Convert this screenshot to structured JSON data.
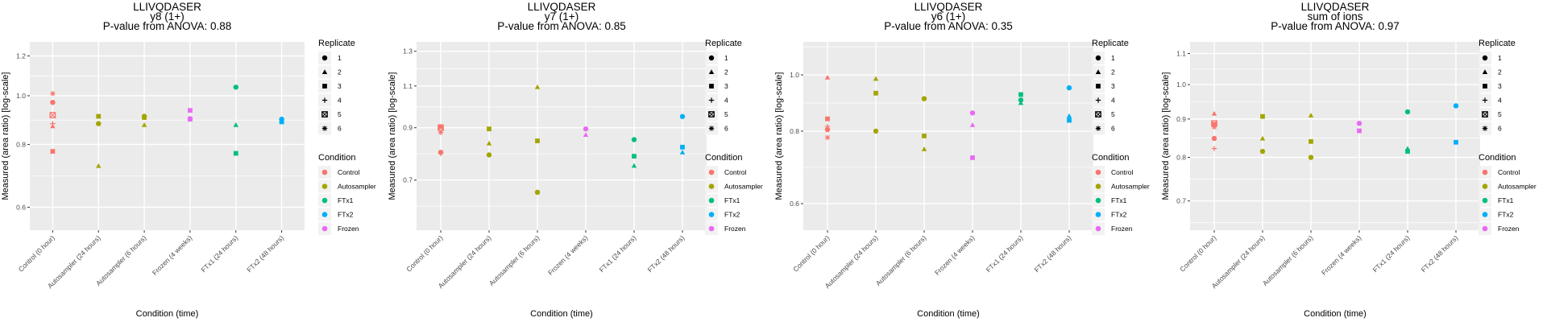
{
  "chart_data": [
    {
      "type": "scatter",
      "title": [
        "LLIVQDASER",
        "y8 (1+)",
        "P-value from ANOVA: 0.88"
      ],
      "xlabel": "Condition (time)",
      "ylabel": "Measured (area ratio) [log-scale]",
      "categories": [
        "Control (0 hour)",
        "Autosampler (24 hours)",
        "Autosampler (6 hours)",
        "Frozen (4 weeks)",
        "FTx1 (24 hours)",
        "FTx2 (48 hours)"
      ],
      "y_scale": "log",
      "ylim": [
        0.54,
        1.28
      ],
      "yticks": [
        0.6,
        0.8,
        1.0,
        1.2
      ],
      "grid": true,
      "points": [
        {
          "x": 0,
          "y": 1.01,
          "condition": "Control",
          "replicate": 6
        },
        {
          "x": 0,
          "y": 0.97,
          "condition": "Control",
          "replicate": 1
        },
        {
          "x": 0,
          "y": 0.915,
          "condition": "Control",
          "replicate": 5
        },
        {
          "x": 0,
          "y": 0.88,
          "condition": "Control",
          "replicate": 4
        },
        {
          "x": 0,
          "y": 0.87,
          "condition": "Control",
          "replicate": 2
        },
        {
          "x": 0,
          "y": 0.775,
          "condition": "Control",
          "replicate": 3
        },
        {
          "x": 1,
          "y": 0.91,
          "condition": "Autosampler",
          "replicate": 3
        },
        {
          "x": 1,
          "y": 0.88,
          "condition": "Autosampler",
          "replicate": 1
        },
        {
          "x": 1,
          "y": 0.725,
          "condition": "Autosampler",
          "replicate": 2
        },
        {
          "x": 2,
          "y": 0.91,
          "condition": "Autosampler",
          "replicate": 1
        },
        {
          "x": 2,
          "y": 0.905,
          "condition": "Autosampler",
          "replicate": 3
        },
        {
          "x": 2,
          "y": 0.875,
          "condition": "Autosampler",
          "replicate": 2
        },
        {
          "x": 3,
          "y": 0.935,
          "condition": "Frozen",
          "replicate": 3
        },
        {
          "x": 3,
          "y": 0.9,
          "condition": "Frozen",
          "replicate": 1
        },
        {
          "x": 3,
          "y": 0.898,
          "condition": "Frozen",
          "replicate": 3
        },
        {
          "x": 4,
          "y": 1.04,
          "condition": "FTx1",
          "replicate": 1
        },
        {
          "x": 4,
          "y": 0.875,
          "condition": "FTx1",
          "replicate": 2
        },
        {
          "x": 4,
          "y": 0.768,
          "condition": "FTx1",
          "replicate": 3
        },
        {
          "x": 5,
          "y": 0.898,
          "condition": "FTx2",
          "replicate": 1
        },
        {
          "x": 5,
          "y": 0.892,
          "condition": "FTx2",
          "replicate": 2
        },
        {
          "x": 5,
          "y": 0.887,
          "condition": "FTx2",
          "replicate": 3
        }
      ]
    },
    {
      "type": "scatter",
      "title": [
        "LLIVQDASER",
        "y7 (1+)",
        "P-value from ANOVA: 0.85"
      ],
      "xlabel": "Condition (time)",
      "ylabel": "Measured (area ratio) [log-scale]",
      "categories": [
        "Control (0 hour)",
        "Autosampler (24 hours)",
        "Autosampler (6 hours)",
        "Frozen (4 weeks)",
        "FTx1 (24 hours)",
        "FTx2 (48 hours)"
      ],
      "y_scale": "log",
      "ylim": [
        0.55,
        1.36
      ],
      "yticks": [
        0.7,
        0.9,
        1.1,
        1.3
      ],
      "grid": true,
      "points": [
        {
          "x": 0,
          "y": 0.905,
          "condition": "Control",
          "replicate": 3
        },
        {
          "x": 0,
          "y": 0.9,
          "condition": "Control",
          "replicate": 5
        },
        {
          "x": 0,
          "y": 0.88,
          "condition": "Control",
          "replicate": 6
        },
        {
          "x": 0,
          "y": 0.8,
          "condition": "Control",
          "replicate": 1
        },
        {
          "x": 0,
          "y": 0.795,
          "condition": "Control",
          "replicate": 4
        },
        {
          "x": 1,
          "y": 0.895,
          "condition": "Autosampler",
          "replicate": 3
        },
        {
          "x": 1,
          "y": 0.835,
          "condition": "Autosampler",
          "replicate": 2
        },
        {
          "x": 1,
          "y": 0.79,
          "condition": "Autosampler",
          "replicate": 1
        },
        {
          "x": 2,
          "y": 1.095,
          "condition": "Autosampler",
          "replicate": 2
        },
        {
          "x": 2,
          "y": 0.845,
          "condition": "Autosampler",
          "replicate": 3
        },
        {
          "x": 2,
          "y": 0.66,
          "condition": "Autosampler",
          "replicate": 1
        },
        {
          "x": 3,
          "y": 0.895,
          "condition": "Frozen",
          "replicate": 1
        },
        {
          "x": 3,
          "y": 0.87,
          "condition": "Frozen",
          "replicate": 2
        },
        {
          "x": 4,
          "y": 0.85,
          "condition": "FTx1",
          "replicate": 1
        },
        {
          "x": 4,
          "y": 0.785,
          "condition": "FTx1",
          "replicate": 3
        },
        {
          "x": 4,
          "y": 0.75,
          "condition": "FTx1",
          "replicate": 2
        },
        {
          "x": 5,
          "y": 0.95,
          "condition": "FTx2",
          "replicate": 1
        },
        {
          "x": 5,
          "y": 0.82,
          "condition": "FTx2",
          "replicate": 3
        },
        {
          "x": 5,
          "y": 0.8,
          "condition": "FTx2",
          "replicate": 2
        }
      ]
    },
    {
      "type": "scatter",
      "title": [
        "LLIVQDASER",
        "y6 (1+)",
        "P-value from ANOVA: 0.35"
      ],
      "xlabel": "Condition (time)",
      "ylabel": "Measured (area ratio) [log-scale]",
      "categories": [
        "Control (0 hour)",
        "Autosampler (24 hours)",
        "Autosampler (6 hours)",
        "Frozen (4 weeks)",
        "FTx1 (24 hours)",
        "FTx2 (48 hours)"
      ],
      "y_scale": "log",
      "ylim": [
        0.54,
        1.14
      ],
      "yticks": [
        0.6,
        0.8,
        1.0
      ],
      "grid": true,
      "points": [
        {
          "x": 0,
          "y": 0.99,
          "condition": "Control",
          "replicate": 2
        },
        {
          "x": 0,
          "y": 0.84,
          "condition": "Control",
          "replicate": 3
        },
        {
          "x": 0,
          "y": 0.815,
          "condition": "Control",
          "replicate": 4
        },
        {
          "x": 0,
          "y": 0.805,
          "condition": "Control",
          "replicate": 1
        },
        {
          "x": 0,
          "y": 0.78,
          "condition": "Control",
          "replicate": 6
        },
        {
          "x": 1,
          "y": 0.985,
          "condition": "Autosampler",
          "replicate": 2
        },
        {
          "x": 1,
          "y": 0.93,
          "condition": "Autosampler",
          "replicate": 3
        },
        {
          "x": 1,
          "y": 0.8,
          "condition": "Autosampler",
          "replicate": 1
        },
        {
          "x": 2,
          "y": 0.91,
          "condition": "Autosampler",
          "replicate": 1
        },
        {
          "x": 2,
          "y": 0.785,
          "condition": "Autosampler",
          "replicate": 3
        },
        {
          "x": 2,
          "y": 0.745,
          "condition": "Autosampler",
          "replicate": 2
        },
        {
          "x": 3,
          "y": 0.86,
          "condition": "Frozen",
          "replicate": 1
        },
        {
          "x": 3,
          "y": 0.82,
          "condition": "Frozen",
          "replicate": 2
        },
        {
          "x": 3,
          "y": 0.72,
          "condition": "Frozen",
          "replicate": 3
        },
        {
          "x": 4,
          "y": 0.925,
          "condition": "FTx1",
          "replicate": 3
        },
        {
          "x": 4,
          "y": 0.905,
          "condition": "FTx1",
          "replicate": 1
        },
        {
          "x": 4,
          "y": 0.895,
          "condition": "FTx1",
          "replicate": 2
        },
        {
          "x": 5,
          "y": 0.95,
          "condition": "FTx2",
          "replicate": 1
        },
        {
          "x": 5,
          "y": 0.85,
          "condition": "FTx2",
          "replicate": 2
        },
        {
          "x": 5,
          "y": 0.835,
          "condition": "FTx2",
          "replicate": 3
        }
      ]
    },
    {
      "type": "scatter",
      "title": [
        "LLIVQDASER",
        "sum of ions",
        "P-value from ANOVA: 0.97"
      ],
      "xlabel": "Condition (time)",
      "ylabel": "Measured (area ratio) [log-scale]",
      "categories": [
        "Control (0 hour)",
        "Autosampler (24 hours)",
        "Autosampler (6 hours)",
        "Frozen (4 weeks)",
        "FTx1 (24 hours)",
        "FTx2 (48 hours)"
      ],
      "y_scale": "log",
      "ylim": [
        0.64,
        1.14
      ],
      "yticks": [
        0.7,
        0.8,
        0.9,
        1.0,
        1.1
      ],
      "grid": true,
      "points": [
        {
          "x": 0,
          "y": 0.915,
          "condition": "Control",
          "replicate": 2
        },
        {
          "x": 0,
          "y": 0.888,
          "condition": "Control",
          "replicate": 5
        },
        {
          "x": 0,
          "y": 0.885,
          "condition": "Control",
          "replicate": 3
        },
        {
          "x": 0,
          "y": 0.878,
          "condition": "Control",
          "replicate": 6
        },
        {
          "x": 0,
          "y": 0.848,
          "condition": "Control",
          "replicate": 1
        },
        {
          "x": 0,
          "y": 0.822,
          "condition": "Control",
          "replicate": 4
        },
        {
          "x": 1,
          "y": 0.907,
          "condition": "Autosampler",
          "replicate": 3
        },
        {
          "x": 1,
          "y": 0.848,
          "condition": "Autosampler",
          "replicate": 2
        },
        {
          "x": 1,
          "y": 0.815,
          "condition": "Autosampler",
          "replicate": 1
        },
        {
          "x": 2,
          "y": 0.91,
          "condition": "Autosampler",
          "replicate": 2
        },
        {
          "x": 2,
          "y": 0.84,
          "condition": "Autosampler",
          "replicate": 3
        },
        {
          "x": 2,
          "y": 0.8,
          "condition": "Autosampler",
          "replicate": 1
        },
        {
          "x": 3,
          "y": 0.888,
          "condition": "Frozen",
          "replicate": 1
        },
        {
          "x": 3,
          "y": 0.868,
          "condition": "Frozen",
          "replicate": 3
        },
        {
          "x": 4,
          "y": 0.92,
          "condition": "FTx1",
          "replicate": 1
        },
        {
          "x": 4,
          "y": 0.822,
          "condition": "FTx1",
          "replicate": 2
        },
        {
          "x": 4,
          "y": 0.815,
          "condition": "FTx1",
          "replicate": 3
        },
        {
          "x": 5,
          "y": 0.937,
          "condition": "FTx2",
          "replicate": 1
        },
        {
          "x": 5,
          "y": 0.838,
          "condition": "FTx2",
          "replicate": 3
        }
      ]
    }
  ],
  "legend": {
    "replicate_title": "Replicate",
    "replicates": [
      "1",
      "2",
      "3",
      "4",
      "5",
      "6"
    ],
    "condition_title": "Condition",
    "conditions": [
      {
        "name": "Control",
        "color": "#F8766D"
      },
      {
        "name": "Autosampler",
        "color": "#A3A500"
      },
      {
        "name": "FTx1",
        "color": "#00BF7D"
      },
      {
        "name": "FTx2",
        "color": "#00B0F6"
      },
      {
        "name": "Frozen",
        "color": "#E76BF3"
      }
    ]
  },
  "colors": {
    "panel_bg": "#EBEBEB",
    "grid": "#FFFFFF",
    "tick_text": "#4D4D4D",
    "legend_key_bg": "#F2F2F2"
  }
}
